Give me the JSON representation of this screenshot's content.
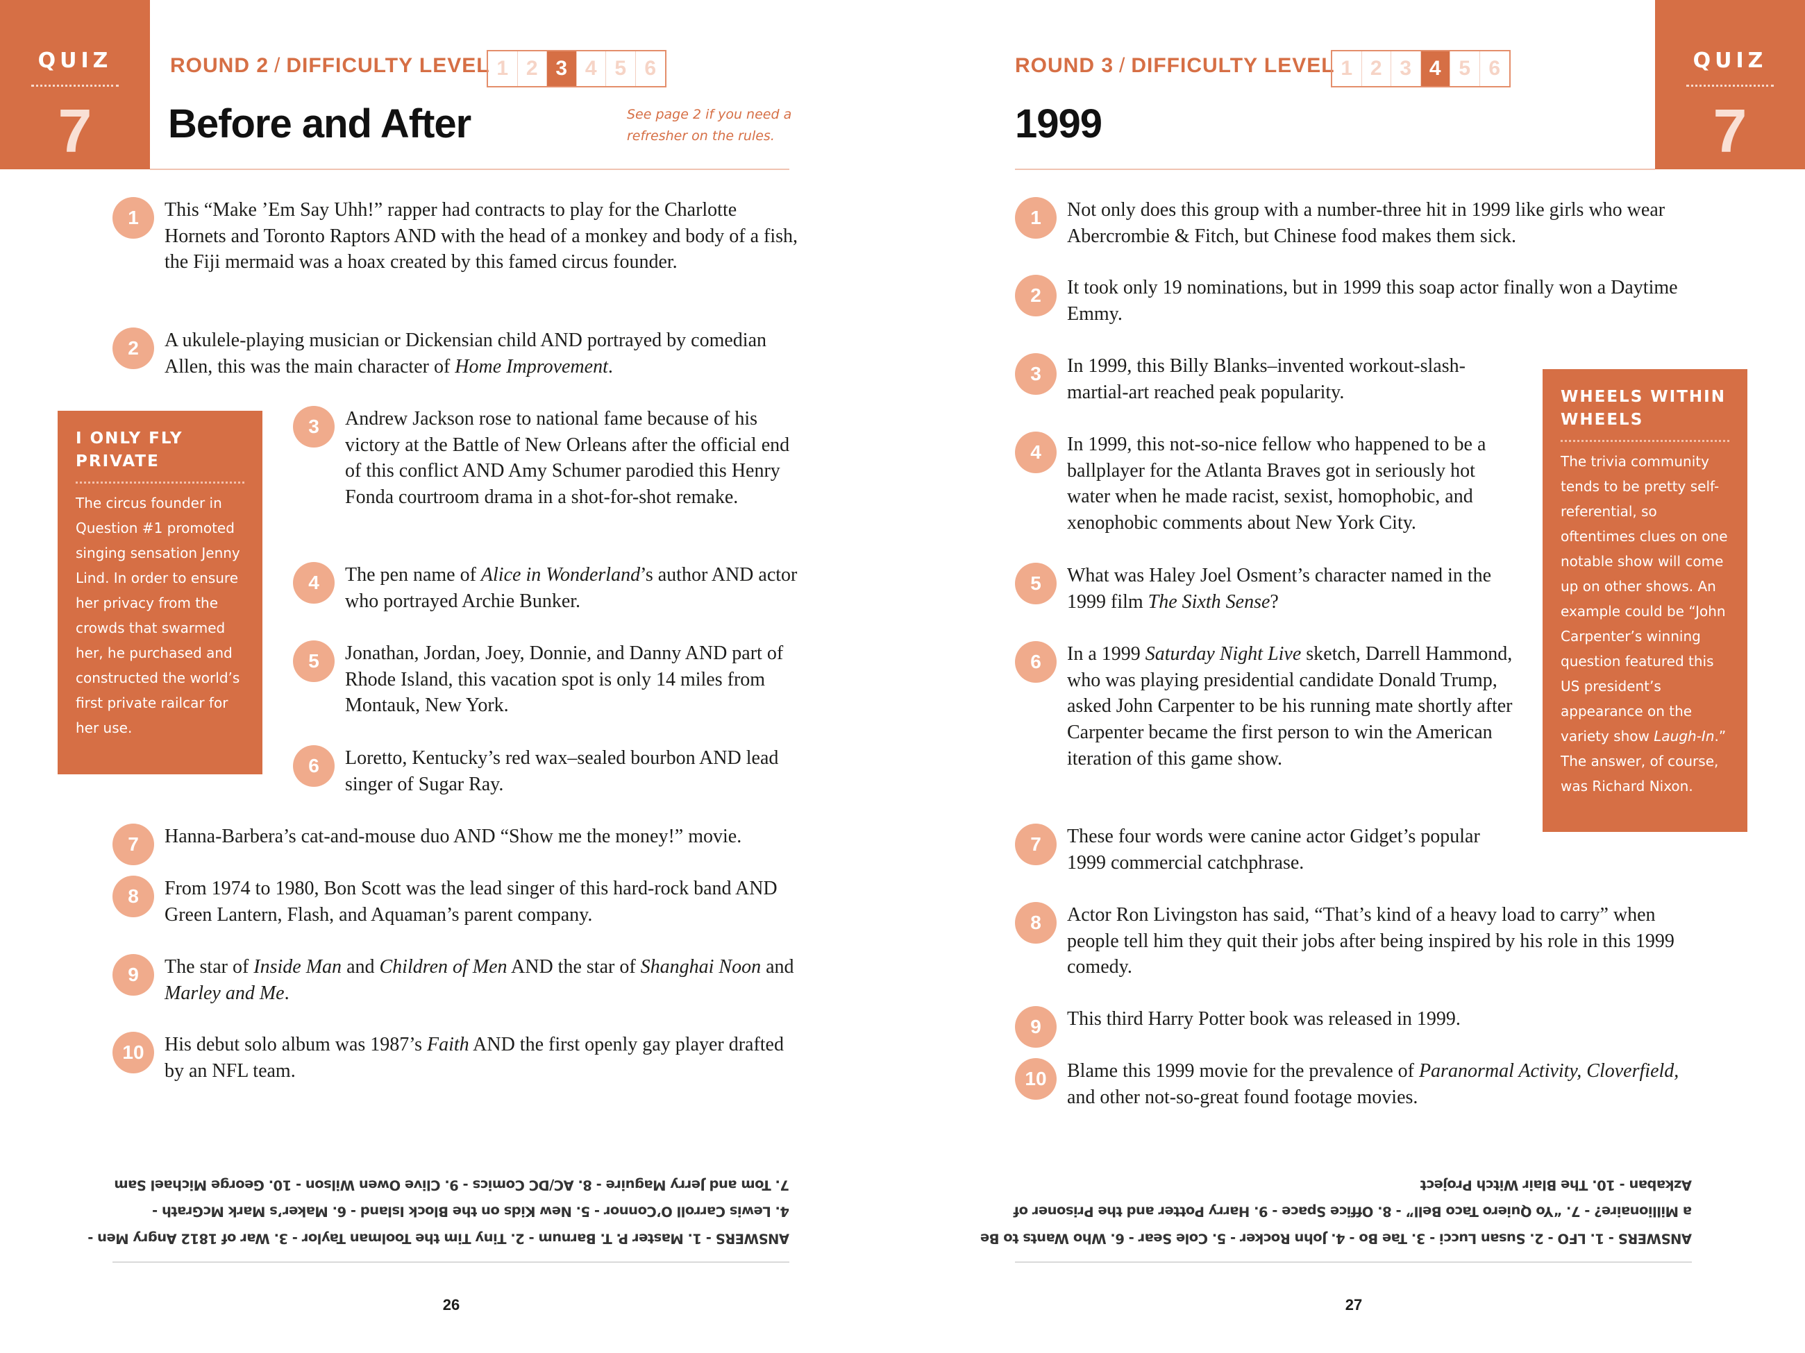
{
  "accent": "#d66f45",
  "left": {
    "quiz_label": "QUIZ",
    "quiz_number": "7",
    "round": "ROUND 2",
    "difficulty_label": "DIFFICULTY LEVEL",
    "separator": "/",
    "levels": [
      "1",
      "2",
      "3",
      "4",
      "5",
      "6"
    ],
    "active_level": 3,
    "title": "Before and After",
    "note_lines": [
      "See page 2 if you need a",
      "refresher on the rules."
    ],
    "questions": [
      {
        "n": "1",
        "parts": [
          {
            "t": "This “Make ’Em Say Uhh!” rapper had contracts to play for the Charlotte Hornets and Toronto Raptors AND with the head of a monkey and body of a fish, the Fiji mermaid was a hoax created by this famed circus founder."
          }
        ]
      },
      {
        "n": "2",
        "parts": [
          {
            "t": "A ukulele-playing musician or Dickensian child AND portrayed by comedian Allen, this was the main character of "
          },
          {
            "t": "Home Improvement",
            "i": true
          },
          {
            "t": "."
          }
        ]
      },
      {
        "n": "3",
        "parts": [
          {
            "t": "Andrew Jackson rose to national fame because of his victory at the Battle of New Orleans after the official end of this conflict AND Amy Schumer parodied this Henry Fonda courtroom drama in a shot-for-shot remake."
          }
        ]
      },
      {
        "n": "4",
        "parts": [
          {
            "t": "The pen name of "
          },
          {
            "t": "Alice in Wonderland",
            "i": true
          },
          {
            "t": "’s author AND actor who portrayed Archie Bunker."
          }
        ]
      },
      {
        "n": "5",
        "parts": [
          {
            "t": "Jonathan, Jordan, Joey, Donnie, and Danny AND part of Rhode Island, this vacation spot is only 14 miles from Montauk, New York."
          }
        ]
      },
      {
        "n": "6",
        "parts": [
          {
            "t": "Loretto, Kentucky’s red wax–sealed bourbon AND lead singer of Sugar Ray."
          }
        ]
      },
      {
        "n": "7",
        "parts": [
          {
            "t": "Hanna-Barbera’s cat-and-mouse duo AND “Show me the money!” movie."
          }
        ]
      },
      {
        "n": "8",
        "parts": [
          {
            "t": "From 1974 to 1980, Bon Scott was the lead singer of this hard-rock band AND Green Lantern, Flash, and Aquaman’s parent company."
          }
        ]
      },
      {
        "n": "9",
        "parts": [
          {
            "t": "The star of "
          },
          {
            "t": "Inside Man",
            "i": true
          },
          {
            "t": " and "
          },
          {
            "t": "Children of Men",
            "i": true
          },
          {
            "t": " AND the star of "
          },
          {
            "t": "Shanghai Noon",
            "i": true
          },
          {
            "t": " and "
          },
          {
            "t": "Marley and Me",
            "i": true
          },
          {
            "t": "."
          }
        ]
      },
      {
        "n": "10",
        "parts": [
          {
            "t": "His debut solo album was 1987’s "
          },
          {
            "t": "Faith",
            "i": true
          },
          {
            "t": " AND the first openly gay player drafted by an NFL team."
          }
        ]
      }
    ],
    "sidebar": {
      "title": "I ONLY FLY PRIVATE",
      "body": "The circus founder in Question #1 promoted singing sensation Jenny Lind. In order to ensure her privacy from the crowds that swarmed her, he purchased and constructed the world’s first private railcar for her use."
    },
    "answers": [
      "ANSWERS - 1. Master P. T. Barnum - 2. Tiny Tim the Toolman Taylor - 3. War of 1812 Angry Men -",
      "4. Lewis Carroll O’Connor - 5. New Kids on the Block Island - 6. Maker’s Mark McGrath -",
      "7. Tom and Jerry Maguire - 8. AC/DC Comics - 9. Clive Owen Wilson - 10. George Michael Sam"
    ],
    "page_number": "26"
  },
  "right": {
    "quiz_label": "QUIZ",
    "quiz_number": "7",
    "round": "ROUND 3",
    "difficulty_label": "DIFFICULTY LEVEL",
    "separator": "/",
    "levels": [
      "1",
      "2",
      "3",
      "4",
      "5",
      "6"
    ],
    "active_level": 4,
    "title": "1999",
    "questions": [
      {
        "n": "1",
        "parts": [
          {
            "t": "Not only does this group with a number-three hit in 1999 like girls who wear Abercrombie & Fitch, but Chinese food makes them sick."
          }
        ]
      },
      {
        "n": "2",
        "parts": [
          {
            "t": "It took only 19 nominations, but in 1999 this soap actor finally won a Daytime Emmy."
          }
        ]
      },
      {
        "n": "3",
        "parts": [
          {
            "t": "In 1999, this Billy Blanks–invented workout-slash-martial-art reached peak popularity."
          }
        ]
      },
      {
        "n": "4",
        "parts": [
          {
            "t": "In 1999, this not-so-nice fellow who happened to be a ballplayer for the Atlanta Braves got in seriously hot water when he made racist, sexist, homophobic, and xenophobic comments about New York City."
          }
        ]
      },
      {
        "n": "5",
        "parts": [
          {
            "t": "What was Haley Joel Osment’s character named in the 1999 film "
          },
          {
            "t": "The Sixth Sense",
            "i": true
          },
          {
            "t": "?"
          }
        ]
      },
      {
        "n": "6",
        "parts": [
          {
            "t": "In a 1999 "
          },
          {
            "t": "Saturday Night Live",
            "i": true
          },
          {
            "t": " sketch, Darrell Hammond, who was playing presidential candidate Donald Trump, asked John Carpenter to be his running mate shortly after Carpenter became the first person to win the American iteration of this game show."
          }
        ]
      },
      {
        "n": "7",
        "parts": [
          {
            "t": "These four words were canine actor Gidget’s popular 1999 commercial catchphrase."
          }
        ]
      },
      {
        "n": "8",
        "parts": [
          {
            "t": "Actor Ron Livingston has said, “That’s kind of a heavy load to carry” when people tell him they quit their jobs after being inspired by his role in this 1999 comedy."
          }
        ]
      },
      {
        "n": "9",
        "parts": [
          {
            "t": "This third Harry Potter book was released in 1999."
          }
        ]
      },
      {
        "n": "10",
        "parts": [
          {
            "t": "Blame this 1999 movie for the prevalence of "
          },
          {
            "t": "Paranormal Activity, Cloverfield,",
            "i": true
          },
          {
            "t": " and other not-so-great found footage movies."
          }
        ]
      }
    ],
    "sidebar": {
      "title": "WHEELS WITHIN WHEELS",
      "body_parts": [
        {
          "t": "The trivia community tends to be pretty self-referential, so oftentimes clues on one notable show will come up on other shows. An example could be “John Carpenter’s winning question featured this US president’s appearance on the variety show "
        },
        {
          "t": "Laugh-In",
          "i": true
        },
        {
          "t": ".” The answer, of course, was Richard Nixon."
        }
      ]
    },
    "answers": [
      "ANSWERS - 1. LFO - 2. Susan Lucci - 3. Tae Bo - 4. John Rocker - 5. Cole Sear - 6. Who Wants to Be",
      "a Millionaire? - 7. “Yo Quiero Taco Bell” - 8. Office Space - 9. Harry Potter and the Prisoner of",
      "Azkaban - 10. The Blair Witch Project"
    ],
    "page_number": "27"
  }
}
